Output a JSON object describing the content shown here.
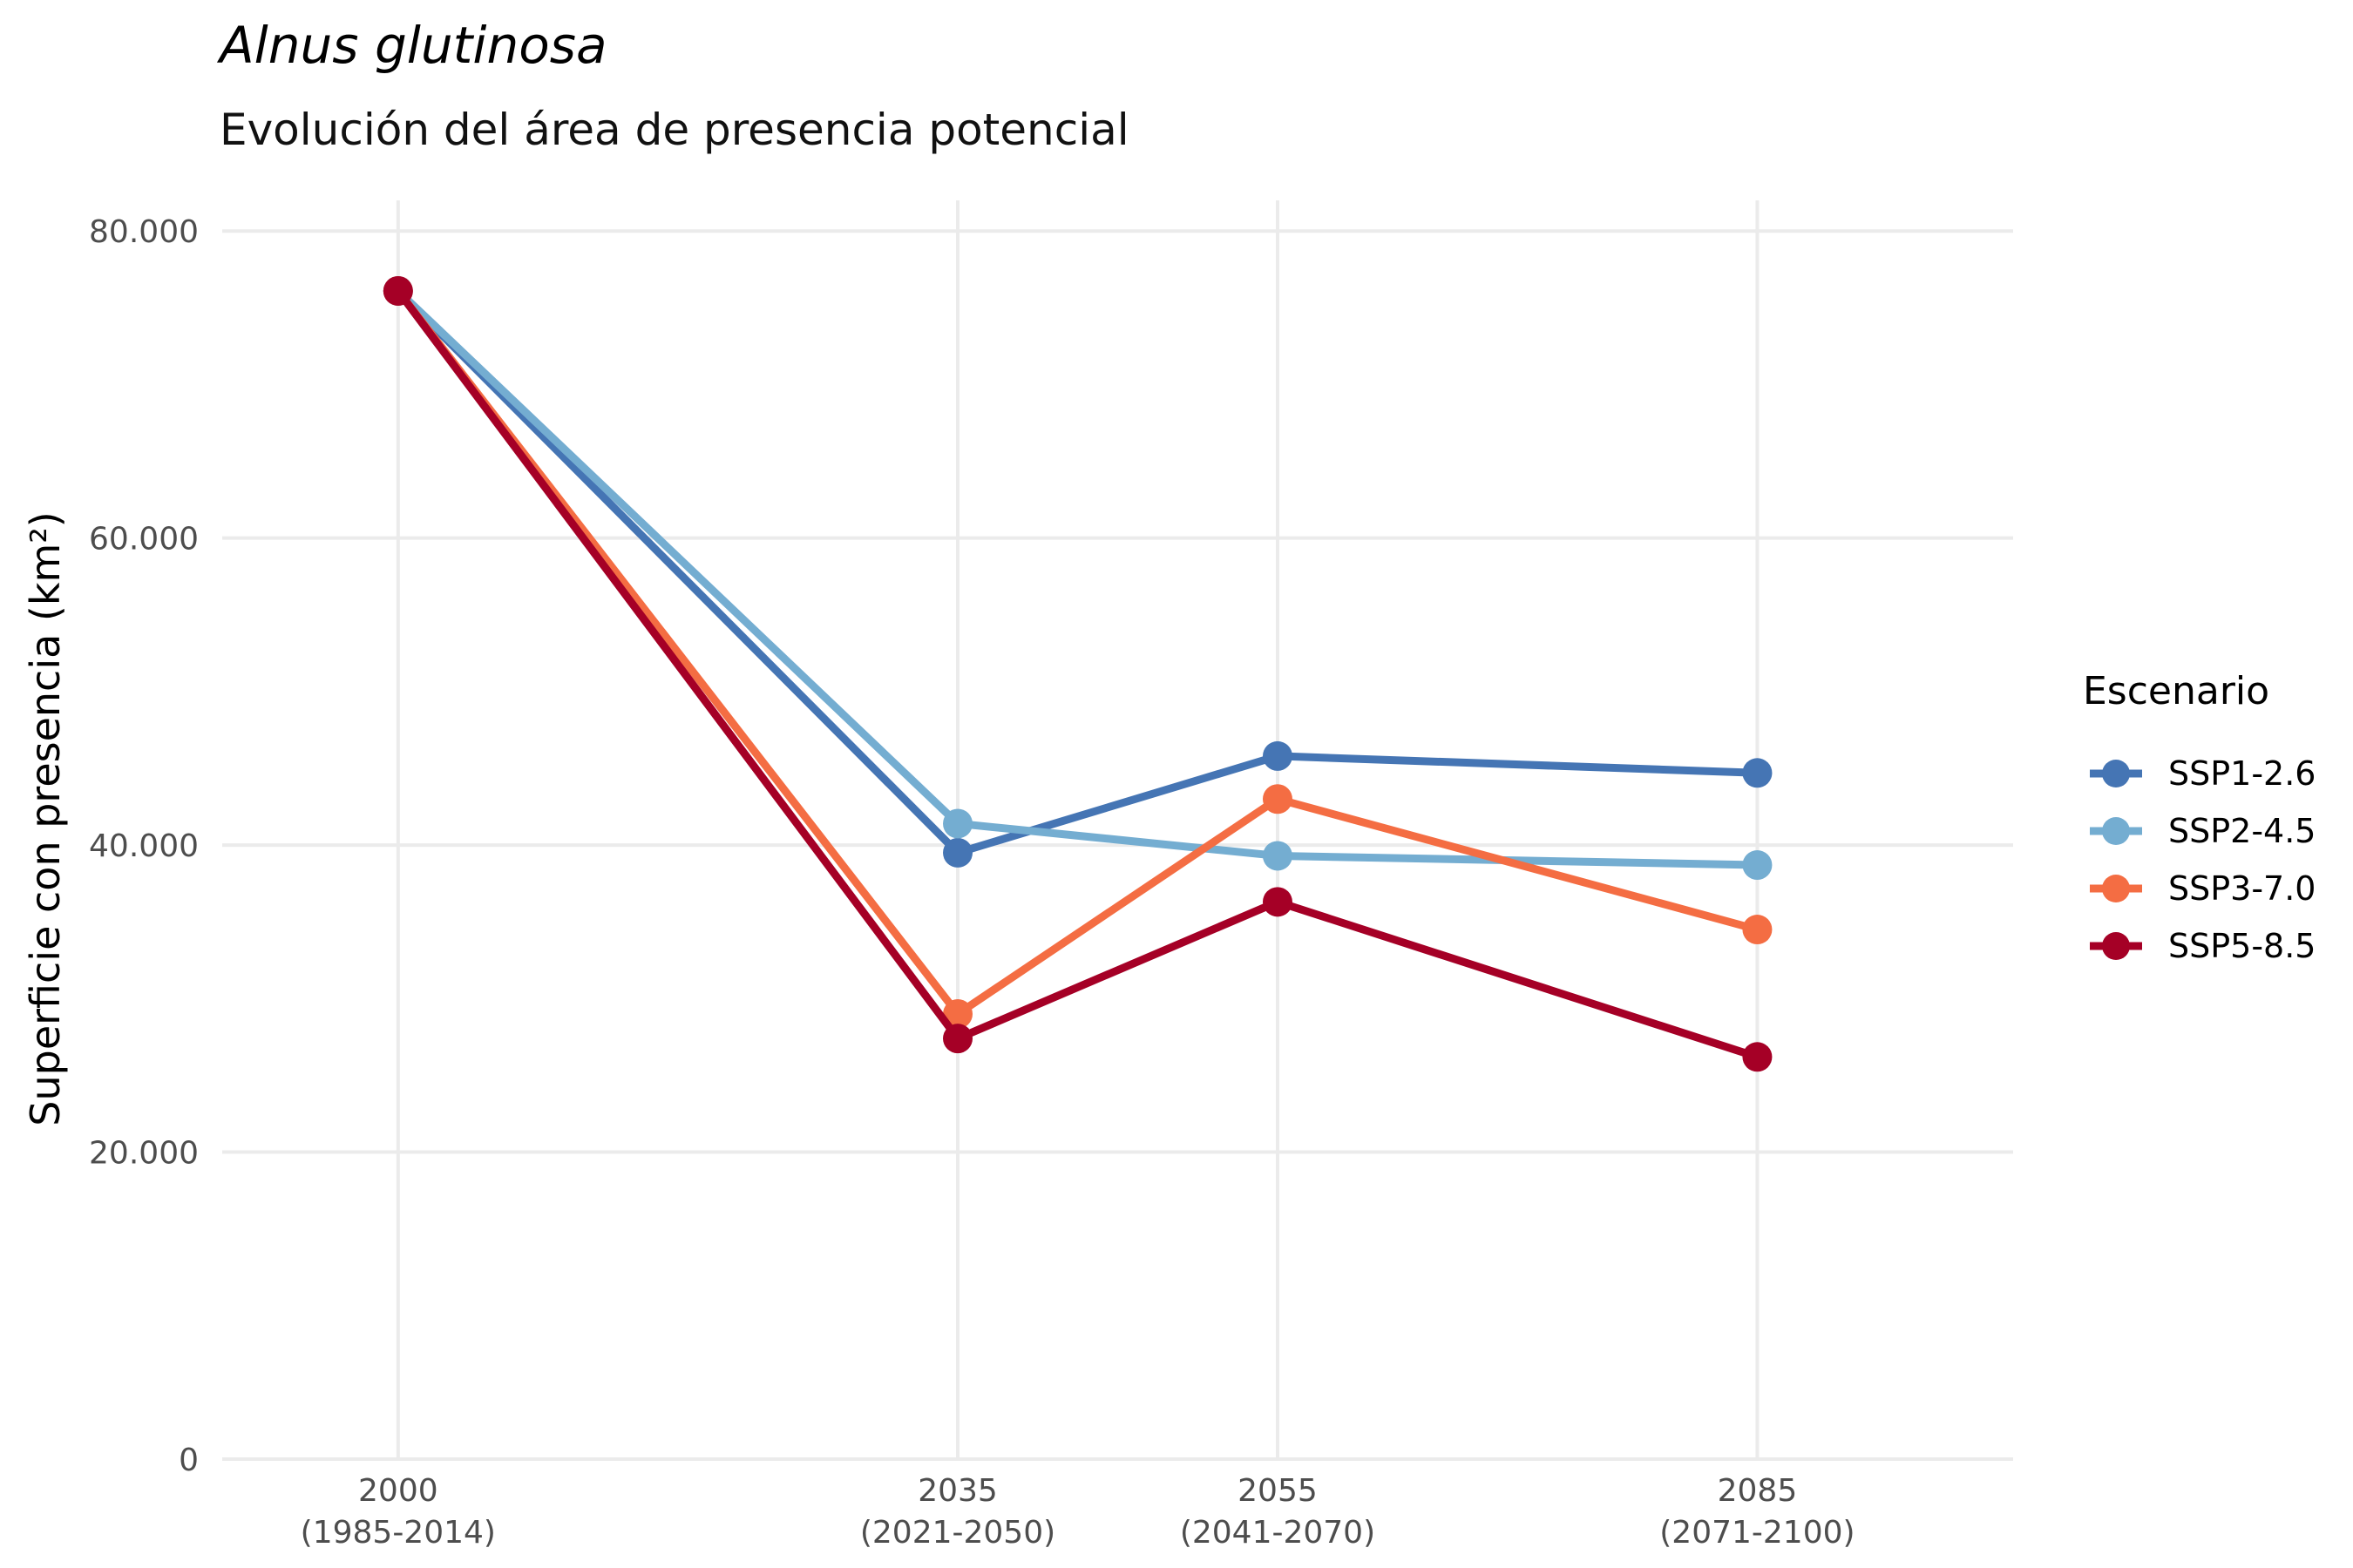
{
  "chart_data": {
    "type": "line",
    "title": "Alnus glutinosa",
    "subtitle": "Evolución del área de presencia potencial",
    "xlabel": "",
    "ylabel": "Superficie con presencia (km²)",
    "x": [
      2000,
      2035,
      2055,
      2085
    ],
    "x_tick_labels": [
      [
        "2000",
        "(1985-2014)"
      ],
      [
        "2035",
        "(2021-2050)"
      ],
      [
        "2055",
        "(2041-2070)"
      ],
      [
        "2085",
        "(2071-2100)"
      ]
    ],
    "xlim": [
      1989,
      2101
    ],
    "ylim": [
      0,
      82000
    ],
    "y_ticks": [
      0,
      20000,
      40000,
      60000,
      80000
    ],
    "y_tick_labels": [
      "0",
      "20.000",
      "40.000",
      "60.000",
      "80.000"
    ],
    "grid": true,
    "legend": {
      "title": "Escenario",
      "position": "right"
    },
    "series": [
      {
        "name": "SSP1-2.6",
        "color": "#4575b4",
        "values": [
          76100,
          39500,
          45800,
          44700
        ]
      },
      {
        "name": "SSP2-4.5",
        "color": "#74add1",
        "values": [
          76100,
          41400,
          39300,
          38700
        ]
      },
      {
        "name": "SSP3-7.0",
        "color": "#f46d43",
        "values": [
          76100,
          29000,
          43000,
          34500
        ]
      },
      {
        "name": "SSP5-8.5",
        "color": "#a50026",
        "values": [
          76100,
          27400,
          36300,
          26200
        ]
      }
    ]
  }
}
